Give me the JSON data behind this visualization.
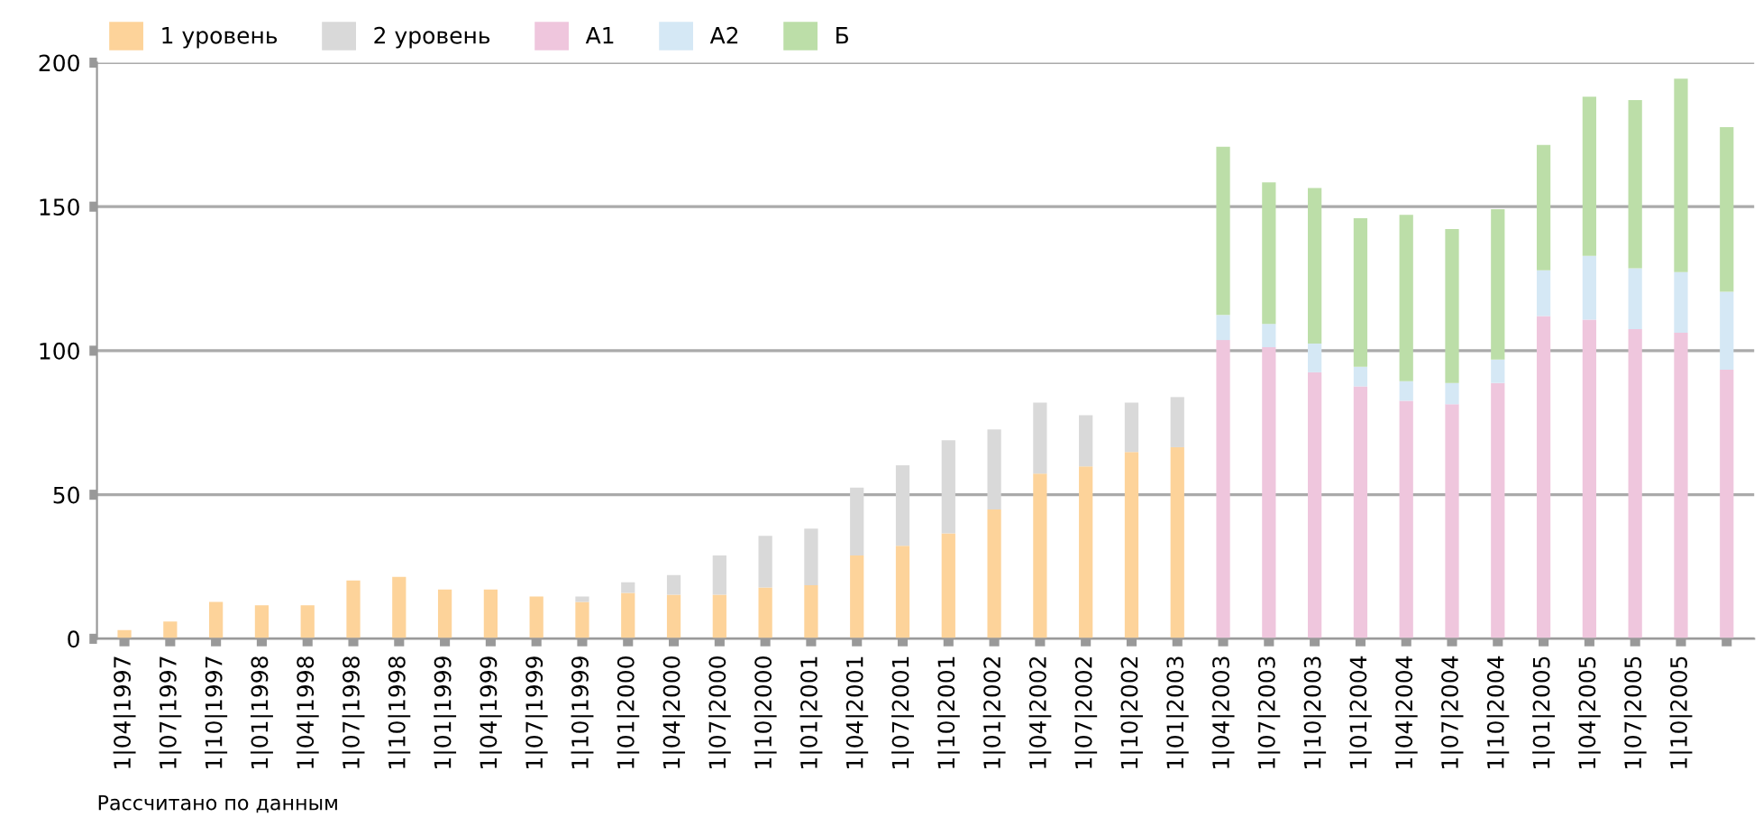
{
  "chart_data": {
    "type": "bar",
    "stacked": true,
    "categories": [
      "1|04|1997",
      "1|07|1997",
      "1|10|1997",
      "1|01|1998",
      "1|04|1998",
      "1|07|1998",
      "1|10|1998",
      "1|01|1999",
      "1|04|1999",
      "1|07|1999",
      "1|10|1999",
      "1|01|2000",
      "1|04|2000",
      "1|07|2000",
      "1|10|2000",
      "1|01|2001",
      "1|04|2001",
      "1|07|2001",
      "1|10|2001",
      "1|01|2002",
      "1|04|2002",
      "1|07|2002",
      "1|10|2002",
      "1|01|2003",
      "1|04|2003",
      "1|07|2003",
      "1|10|2003",
      "1|01|2004",
      "1|04|2004",
      "1|07|2004",
      "1|10|2004",
      "1|01|2005",
      "1|04|2005",
      "1|07|2005",
      "1|10|2005",
      null
    ],
    "series": [
      {
        "name": "1 уровень",
        "color": "#fdd39a",
        "values": [
          3,
          6,
          12.8,
          11.6,
          11.6,
          20.2,
          21.5,
          17.1,
          17.1,
          14.7,
          12.8,
          15.9,
          15.3,
          15.3,
          17.8,
          18.6,
          28.9,
          32.3,
          36.6,
          44.9,
          57.3,
          59.8,
          64.8,
          66.5,
          null,
          null,
          null,
          null,
          null,
          null,
          null,
          null,
          null,
          null,
          null,
          null
        ]
      },
      {
        "name": "2 уровень",
        "color": "#d9d9d9",
        "values": [
          null,
          null,
          null,
          null,
          null,
          null,
          null,
          null,
          null,
          null,
          1.9,
          3.7,
          6.8,
          13.6,
          17.9,
          19.6,
          23.6,
          27.9,
          32.3,
          27.8,
          24.7,
          17.8,
          17.2,
          17.4,
          null,
          null,
          null,
          null,
          null,
          null,
          null,
          null,
          null,
          null,
          null,
          null
        ]
      },
      {
        "name": "А1",
        "color": "#efc6dd",
        "values": [
          null,
          null,
          null,
          null,
          null,
          null,
          null,
          null,
          null,
          null,
          null,
          null,
          null,
          null,
          null,
          null,
          null,
          null,
          null,
          null,
          null,
          null,
          null,
          null,
          103.7,
          101.2,
          92.5,
          87.6,
          82.6,
          81.4,
          88.8,
          112.0,
          110.8,
          107.5,
          106.2,
          93.4
        ]
      },
      {
        "name": "А2",
        "color": "#d5e8f5",
        "values": [
          null,
          null,
          null,
          null,
          null,
          null,
          null,
          null,
          null,
          null,
          null,
          null,
          null,
          null,
          null,
          null,
          null,
          null,
          null,
          null,
          null,
          null,
          null,
          null,
          8.7,
          8.1,
          10.0,
          6.8,
          6.8,
          7.4,
          8.1,
          15.9,
          22.1,
          21.1,
          21.1,
          27.1
        ]
      },
      {
        "name": "Б",
        "color": "#bcdea8",
        "values": [
          null,
          null,
          null,
          null,
          null,
          null,
          null,
          null,
          null,
          null,
          null,
          null,
          null,
          null,
          null,
          null,
          null,
          null,
          null,
          null,
          null,
          null,
          null,
          null,
          58.4,
          49.1,
          54.0,
          51.6,
          57.8,
          53.4,
          52.2,
          43.5,
          55.3,
          58.4,
          67.1,
          57.1
        ]
      }
    ],
    "ylim": [
      0,
      200
    ],
    "yticks": [
      0,
      50,
      100,
      150,
      200
    ],
    "grid": "y",
    "legend": "top left",
    "annotations": [
      "Рассчитано по данным"
    ]
  }
}
